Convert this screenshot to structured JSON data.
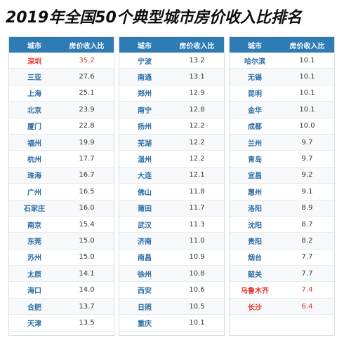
{
  "title": "2019年全国50个典型城市房价收入比排名",
  "colors": {
    "header": "#2f7bb4",
    "city": "#2d6fa6",
    "highlight": "#e53935"
  },
  "chart_data": {
    "type": "table",
    "columns": [
      "城市",
      "房价收入比"
    ],
    "groups": [
      [
        {
          "city": "深圳",
          "value": "35.2",
          "highlight": true
        },
        {
          "city": "三亚",
          "value": "27.6"
        },
        {
          "city": "上海",
          "value": "25.1"
        },
        {
          "city": "北京",
          "value": "23.9"
        },
        {
          "city": "厦门",
          "value": "22.8"
        },
        {
          "city": "福州",
          "value": "19.9"
        },
        {
          "city": "杭州",
          "value": "17.7"
        },
        {
          "city": "珠海",
          "value": "16.7"
        },
        {
          "city": "广州",
          "value": "16.5"
        },
        {
          "city": "石家庄",
          "value": "16.0"
        },
        {
          "city": "南京",
          "value": "15.4"
        },
        {
          "city": "东莞",
          "value": "15.0"
        },
        {
          "city": "苏州",
          "value": "15.0"
        },
        {
          "city": "太原",
          "value": "14.1"
        },
        {
          "city": "海口",
          "value": "14.0"
        },
        {
          "city": "合肥",
          "value": "13.7"
        },
        {
          "city": "天津",
          "value": "13.5"
        }
      ],
      [
        {
          "city": "宁波",
          "value": "13.2"
        },
        {
          "city": "南通",
          "value": "13.1"
        },
        {
          "city": "郑州",
          "value": "12.9"
        },
        {
          "city": "南宁",
          "value": "12.8"
        },
        {
          "city": "扬州",
          "value": "12.2"
        },
        {
          "city": "芜湖",
          "value": "12.2"
        },
        {
          "city": "温州",
          "value": "12.2"
        },
        {
          "city": "大连",
          "value": "12.1"
        },
        {
          "city": "佛山",
          "value": "11.8"
        },
        {
          "city": "莆田",
          "value": "11.7"
        },
        {
          "city": "武汉",
          "value": "11.3"
        },
        {
          "city": "济南",
          "value": "11.0"
        },
        {
          "city": "南昌",
          "value": "10.9"
        },
        {
          "city": "徐州",
          "value": "10.8"
        },
        {
          "city": "西安",
          "value": "10.6"
        },
        {
          "city": "日照",
          "value": "10.5"
        },
        {
          "city": "重庆",
          "value": "10.1"
        }
      ],
      [
        {
          "city": "哈尔滨",
          "value": "10.1"
        },
        {
          "city": "无锡",
          "value": "10.1"
        },
        {
          "city": "昆明",
          "value": "10.1"
        },
        {
          "city": "金华",
          "value": "10.1"
        },
        {
          "city": "成都",
          "value": "10.0"
        },
        {
          "city": "兰州",
          "value": "9.7"
        },
        {
          "city": "青岛",
          "value": "9.7"
        },
        {
          "city": "宜昌",
          "value": "9.2"
        },
        {
          "city": "惠州",
          "value": "9.1"
        },
        {
          "city": "洛阳",
          "value": "8.9"
        },
        {
          "city": "沈阳",
          "value": "8.7"
        },
        {
          "city": "贵阳",
          "value": "8.2"
        },
        {
          "city": "烟台",
          "value": "7.7"
        },
        {
          "city": "韶关",
          "value": "7.7"
        },
        {
          "city": "乌鲁木齐",
          "value": "7.4",
          "highlight": true
        },
        {
          "city": "长沙",
          "value": "6.4",
          "highlight": true
        }
      ]
    ]
  }
}
